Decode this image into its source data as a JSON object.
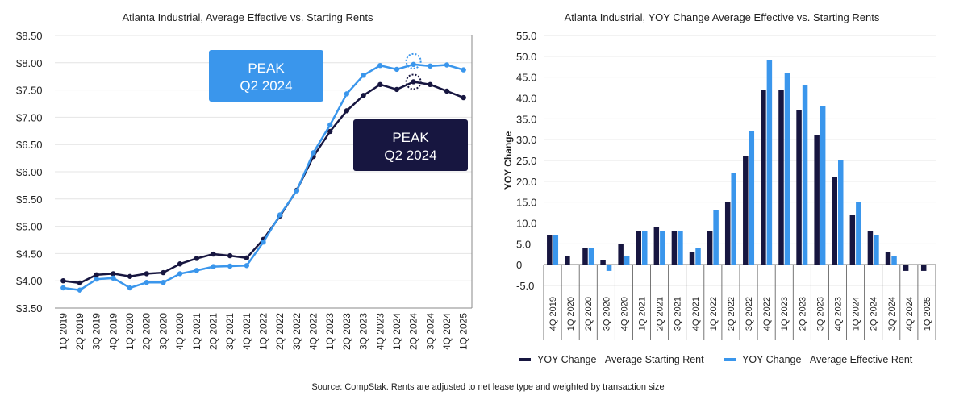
{
  "colors": {
    "navy": "#171640",
    "blue": "#3a96ec",
    "grid": "#e4e4e4",
    "axis": "#333333"
  },
  "source_text": "Source: CompStak. Rents are adjusted to net lease type and weighted by transaction size",
  "chart_data": [
    {
      "type": "line",
      "title": "Atlanta Industrial, Average Effective vs. Starting Rents",
      "xlabel": "",
      "ylabel": "",
      "ylim": [
        3.5,
        8.5
      ],
      "yticks": [
        "$8.50",
        "$8.00",
        "$7.50",
        "$7.00",
        "$6.50",
        "$6.00",
        "$5.50",
        "$5.00",
        "$4.50",
        "$4.00",
        "$3.50"
      ],
      "grid": true,
      "legend": "none",
      "categories": [
        "1Q 2019",
        "2Q 2019",
        "3Q 2019",
        "4Q 2019",
        "1Q 2020",
        "2Q 2020",
        "3Q 2020",
        "4Q 2020",
        "1Q 2021",
        "2Q 2021",
        "3Q 2021",
        "4Q 2021",
        "1Q 2022",
        "2Q 2022",
        "3Q 2022",
        "4Q 2022",
        "1Q 2023",
        "2Q 2023",
        "3Q 2023",
        "4Q 2023",
        "1Q 2024",
        "2Q 2024",
        "3Q 2024",
        "4Q 2024",
        "1Q 2025"
      ],
      "series": [
        {
          "key": "starting",
          "color": "#171640",
          "values": [
            4.0,
            3.96,
            4.11,
            4.13,
            4.08,
            4.13,
            4.15,
            4.31,
            4.41,
            4.49,
            4.46,
            4.42,
            4.76,
            5.19,
            5.66,
            6.28,
            6.74,
            7.12,
            7.4,
            7.6,
            7.51,
            7.65,
            7.6,
            7.48,
            7.36
          ]
        },
        {
          "key": "effective",
          "color": "#3a96ec",
          "values": [
            3.87,
            3.83,
            4.03,
            4.05,
            3.87,
            3.97,
            3.97,
            4.13,
            4.19,
            4.26,
            4.27,
            4.28,
            4.71,
            5.21,
            5.65,
            6.35,
            6.86,
            7.43,
            7.77,
            7.95,
            7.88,
            7.97,
            7.94,
            7.96,
            7.87
          ]
        }
      ],
      "annotations": [
        {
          "lines": [
            "PEAK",
            "Q2 2024"
          ],
          "color": "#3a96ec"
        },
        {
          "lines": [
            "PEAK",
            "Q2 2024"
          ],
          "color": "#171640"
        }
      ]
    },
    {
      "type": "bar",
      "title": "Atlanta Industrial, YOY Change Average Effective vs. Starting Rents",
      "xlabel": "",
      "ylabel": "YOY Change",
      "ylim": [
        -5,
        55
      ],
      "yticks": [
        "55.0",
        "50.0",
        "45.0",
        "40.0",
        "35.0",
        "30.0",
        "25.0",
        "20.0",
        "15.0",
        "10.0",
        "5.0",
        "0",
        "-5.0"
      ],
      "grid": true,
      "legend": "bottom",
      "categories": [
        "4Q 2019",
        "1Q 2020",
        "2Q 2020",
        "3Q 2020",
        "4Q 2020",
        "1Q 2021",
        "2Q 2021",
        "3Q 2021",
        "4Q 2021",
        "1Q 2022",
        "2Q 2022",
        "3Q 2022",
        "4Q 2022",
        "1Q 2023",
        "2Q 2023",
        "3Q 2023",
        "4Q 2023",
        "1Q 2024",
        "2Q 2024",
        "3Q 2024",
        "4Q 2024",
        "1Q 2025"
      ],
      "series": [
        {
          "name": "YOY Change - Average Starting Rent",
          "color": "#171640",
          "values": [
            7,
            2,
            4,
            1,
            5,
            8,
            9,
            8,
            3,
            8,
            15,
            26,
            42,
            42,
            37,
            31,
            21,
            12,
            8,
            3,
            -1.5,
            -1.5
          ]
        },
        {
          "name": "YOY Change - Average Effective Rent",
          "color": "#3a96ec",
          "values": [
            7,
            0,
            4,
            -1.5,
            2,
            8,
            8,
            8,
            4,
            13,
            22,
            32,
            49,
            46,
            43,
            38,
            25,
            15,
            7,
            2,
            0,
            0
          ]
        }
      ]
    }
  ]
}
